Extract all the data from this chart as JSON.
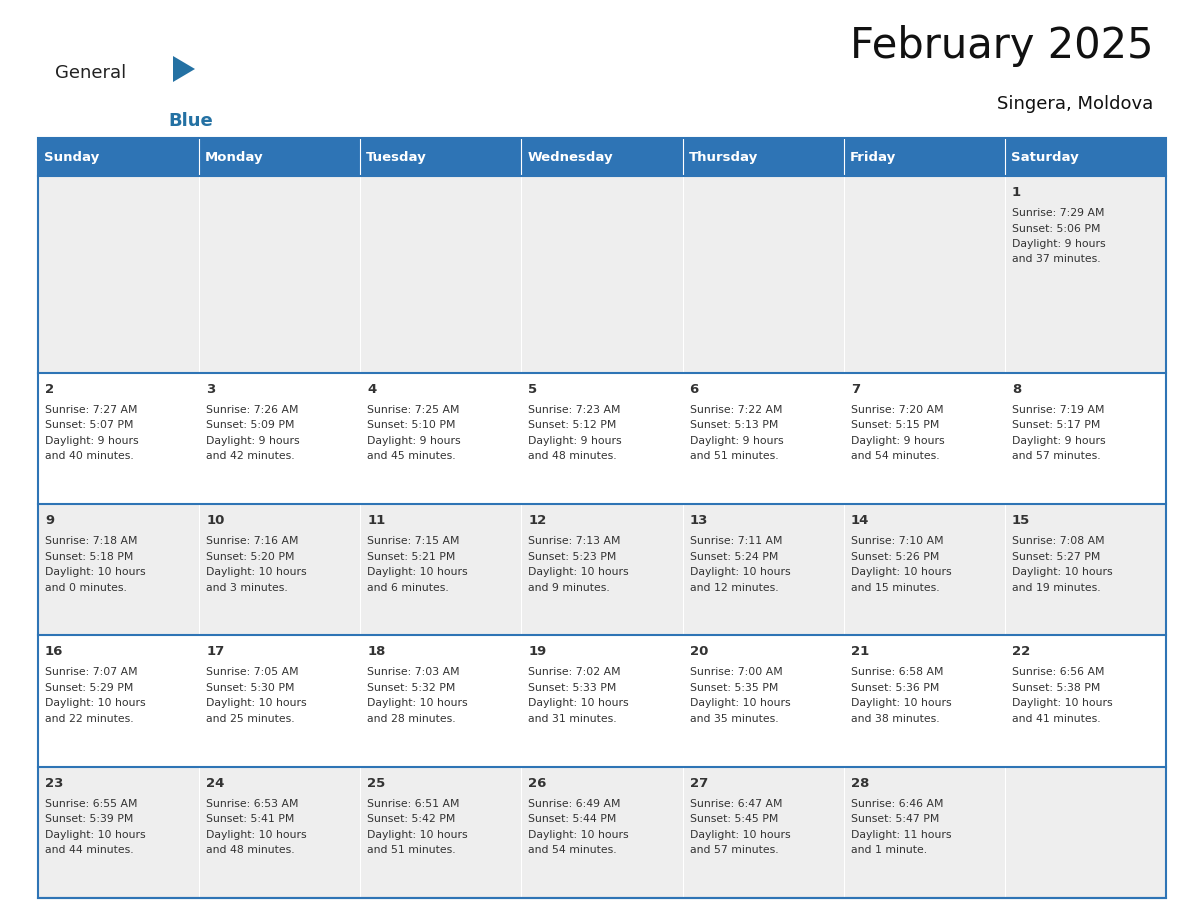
{
  "title": "February 2025",
  "subtitle": "Singera, Moldova",
  "header_bg": "#2E74B5",
  "header_text_color": "#FFFFFF",
  "cell_bg_row0": "#EEEEEE",
  "cell_bg_odd": "#E8E8E8",
  "cell_bg_even": "#FFFFFF",
  "border_color": "#2E74B5",
  "text_color": "#333333",
  "day_names": [
    "Sunday",
    "Monday",
    "Tuesday",
    "Wednesday",
    "Thursday",
    "Friday",
    "Saturday"
  ],
  "days": [
    {
      "day": 1,
      "col": 6,
      "row": 0,
      "sunrise": "7:29 AM",
      "sunset": "5:06 PM",
      "daylight_line1": "Daylight: 9 hours",
      "daylight_line2": "and 37 minutes."
    },
    {
      "day": 2,
      "col": 0,
      "row": 1,
      "sunrise": "7:27 AM",
      "sunset": "5:07 PM",
      "daylight_line1": "Daylight: 9 hours",
      "daylight_line2": "and 40 minutes."
    },
    {
      "day": 3,
      "col": 1,
      "row": 1,
      "sunrise": "7:26 AM",
      "sunset": "5:09 PM",
      "daylight_line1": "Daylight: 9 hours",
      "daylight_line2": "and 42 minutes."
    },
    {
      "day": 4,
      "col": 2,
      "row": 1,
      "sunrise": "7:25 AM",
      "sunset": "5:10 PM",
      "daylight_line1": "Daylight: 9 hours",
      "daylight_line2": "and 45 minutes."
    },
    {
      "day": 5,
      "col": 3,
      "row": 1,
      "sunrise": "7:23 AM",
      "sunset": "5:12 PM",
      "daylight_line1": "Daylight: 9 hours",
      "daylight_line2": "and 48 minutes."
    },
    {
      "day": 6,
      "col": 4,
      "row": 1,
      "sunrise": "7:22 AM",
      "sunset": "5:13 PM",
      "daylight_line1": "Daylight: 9 hours",
      "daylight_line2": "and 51 minutes."
    },
    {
      "day": 7,
      "col": 5,
      "row": 1,
      "sunrise": "7:20 AM",
      "sunset": "5:15 PM",
      "daylight_line1": "Daylight: 9 hours",
      "daylight_line2": "and 54 minutes."
    },
    {
      "day": 8,
      "col": 6,
      "row": 1,
      "sunrise": "7:19 AM",
      "sunset": "5:17 PM",
      "daylight_line1": "Daylight: 9 hours",
      "daylight_line2": "and 57 minutes."
    },
    {
      "day": 9,
      "col": 0,
      "row": 2,
      "sunrise": "7:18 AM",
      "sunset": "5:18 PM",
      "daylight_line1": "Daylight: 10 hours",
      "daylight_line2": "and 0 minutes."
    },
    {
      "day": 10,
      "col": 1,
      "row": 2,
      "sunrise": "7:16 AM",
      "sunset": "5:20 PM",
      "daylight_line1": "Daylight: 10 hours",
      "daylight_line2": "and 3 minutes."
    },
    {
      "day": 11,
      "col": 2,
      "row": 2,
      "sunrise": "7:15 AM",
      "sunset": "5:21 PM",
      "daylight_line1": "Daylight: 10 hours",
      "daylight_line2": "and 6 minutes."
    },
    {
      "day": 12,
      "col": 3,
      "row": 2,
      "sunrise": "7:13 AM",
      "sunset": "5:23 PM",
      "daylight_line1": "Daylight: 10 hours",
      "daylight_line2": "and 9 minutes."
    },
    {
      "day": 13,
      "col": 4,
      "row": 2,
      "sunrise": "7:11 AM",
      "sunset": "5:24 PM",
      "daylight_line1": "Daylight: 10 hours",
      "daylight_line2": "and 12 minutes."
    },
    {
      "day": 14,
      "col": 5,
      "row": 2,
      "sunrise": "7:10 AM",
      "sunset": "5:26 PM",
      "daylight_line1": "Daylight: 10 hours",
      "daylight_line2": "and 15 minutes."
    },
    {
      "day": 15,
      "col": 6,
      "row": 2,
      "sunrise": "7:08 AM",
      "sunset": "5:27 PM",
      "daylight_line1": "Daylight: 10 hours",
      "daylight_line2": "and 19 minutes."
    },
    {
      "day": 16,
      "col": 0,
      "row": 3,
      "sunrise": "7:07 AM",
      "sunset": "5:29 PM",
      "daylight_line1": "Daylight: 10 hours",
      "daylight_line2": "and 22 minutes."
    },
    {
      "day": 17,
      "col": 1,
      "row": 3,
      "sunrise": "7:05 AM",
      "sunset": "5:30 PM",
      "daylight_line1": "Daylight: 10 hours",
      "daylight_line2": "and 25 minutes."
    },
    {
      "day": 18,
      "col": 2,
      "row": 3,
      "sunrise": "7:03 AM",
      "sunset": "5:32 PM",
      "daylight_line1": "Daylight: 10 hours",
      "daylight_line2": "and 28 minutes."
    },
    {
      "day": 19,
      "col": 3,
      "row": 3,
      "sunrise": "7:02 AM",
      "sunset": "5:33 PM",
      "daylight_line1": "Daylight: 10 hours",
      "daylight_line2": "and 31 minutes."
    },
    {
      "day": 20,
      "col": 4,
      "row": 3,
      "sunrise": "7:00 AM",
      "sunset": "5:35 PM",
      "daylight_line1": "Daylight: 10 hours",
      "daylight_line2": "and 35 minutes."
    },
    {
      "day": 21,
      "col": 5,
      "row": 3,
      "sunrise": "6:58 AM",
      "sunset": "5:36 PM",
      "daylight_line1": "Daylight: 10 hours",
      "daylight_line2": "and 38 minutes."
    },
    {
      "day": 22,
      "col": 6,
      "row": 3,
      "sunrise": "6:56 AM",
      "sunset": "5:38 PM",
      "daylight_line1": "Daylight: 10 hours",
      "daylight_line2": "and 41 minutes."
    },
    {
      "day": 23,
      "col": 0,
      "row": 4,
      "sunrise": "6:55 AM",
      "sunset": "5:39 PM",
      "daylight_line1": "Daylight: 10 hours",
      "daylight_line2": "and 44 minutes."
    },
    {
      "day": 24,
      "col": 1,
      "row": 4,
      "sunrise": "6:53 AM",
      "sunset": "5:41 PM",
      "daylight_line1": "Daylight: 10 hours",
      "daylight_line2": "and 48 minutes."
    },
    {
      "day": 25,
      "col": 2,
      "row": 4,
      "sunrise": "6:51 AM",
      "sunset": "5:42 PM",
      "daylight_line1": "Daylight: 10 hours",
      "daylight_line2": "and 51 minutes."
    },
    {
      "day": 26,
      "col": 3,
      "row": 4,
      "sunrise": "6:49 AM",
      "sunset": "5:44 PM",
      "daylight_line1": "Daylight: 10 hours",
      "daylight_line2": "and 54 minutes."
    },
    {
      "day": 27,
      "col": 4,
      "row": 4,
      "sunrise": "6:47 AM",
      "sunset": "5:45 PM",
      "daylight_line1": "Daylight: 10 hours",
      "daylight_line2": "and 57 minutes."
    },
    {
      "day": 28,
      "col": 5,
      "row": 4,
      "sunrise": "6:46 AM",
      "sunset": "5:47 PM",
      "daylight_line1": "Daylight: 11 hours",
      "daylight_line2": "and 1 minute."
    }
  ],
  "num_rows": 5,
  "logo_general_color": "#222222",
  "logo_blue_color": "#2471A3",
  "logo_triangle_color": "#2471A3",
  "fig_width": 11.88,
  "fig_height": 9.18,
  "dpi": 100
}
